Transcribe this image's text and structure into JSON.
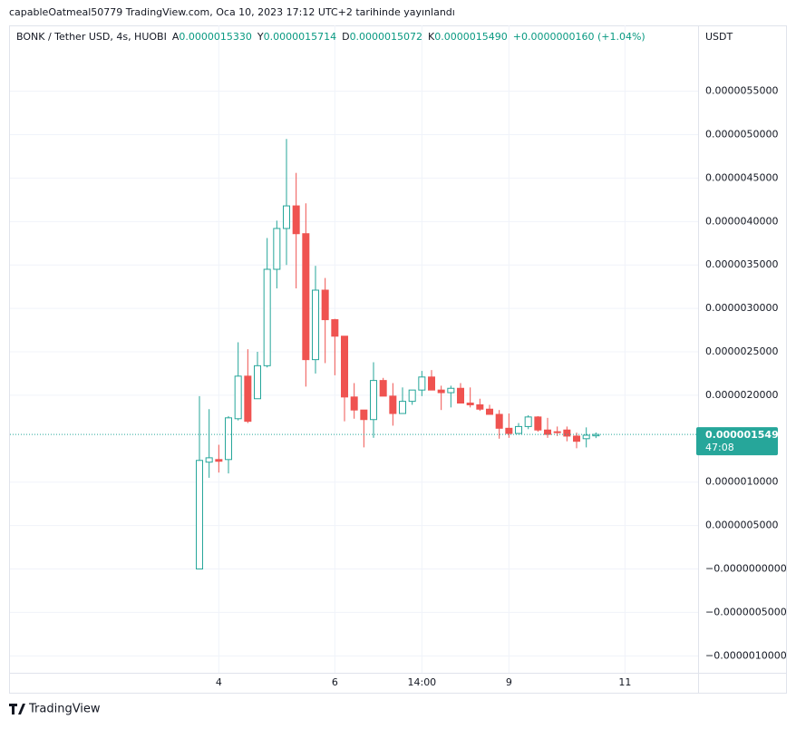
{
  "header": {
    "published": "capableOatmeal50779 TradingView.com, Oca 10, 2023 17:12 UTC+2 tarihinde yayınlandı"
  },
  "legend": {
    "symbol": "BONK / Tether USD, 4s, HUOBI",
    "items": [
      {
        "key": "A",
        "value": "0.0000015330"
      },
      {
        "key": "Y",
        "value": "0.0000015714"
      },
      {
        "key": "D",
        "value": "0.0000015072"
      },
      {
        "key": "K",
        "value": "0.0000015490"
      }
    ],
    "change": "+0.0000000160 (+1.04%)"
  },
  "footer": {
    "brand": "TradingView"
  },
  "chart_data": {
    "type": "candlestick",
    "currency": "USDT",
    "categories": [
      null,
      null,
      "4",
      null,
      null,
      null,
      null,
      null,
      null,
      null,
      null,
      null,
      null,
      null,
      "6",
      null,
      null,
      null,
      null,
      null,
      null,
      null,
      null,
      "14:00",
      null,
      null,
      null,
      null,
      null,
      null,
      null,
      null,
      "9",
      null,
      null,
      null,
      null,
      null,
      null,
      null,
      null,
      null,
      null,
      null,
      "11"
    ],
    "open": [
      0.0,
      1.23e-06,
      1.26e-06,
      1.26e-06,
      1.73e-06,
      2.22e-06,
      1.96e-06,
      2.34e-06,
      3.45e-06,
      3.92e-06,
      4.18e-06,
      3.86e-06,
      2.41e-06,
      3.21e-06,
      2.87e-06,
      2.68e-06,
      1.98e-06,
      1.83e-06,
      1.72e-06,
      2.17e-06,
      1.99e-06,
      1.79e-06,
      1.93e-06,
      2.06e-06,
      2.21e-06,
      2.06e-06,
      2.03e-06,
      2.08e-06,
      1.91e-06,
      1.89e-06,
      1.84e-06,
      1.78e-06,
      1.62e-06,
      1.56e-06,
      1.64e-06,
      1.75e-06,
      1.6e-06,
      1.58e-06,
      1.6e-06,
      1.53e-06,
      1.5e-06,
      1.533e-06,
      null,
      null,
      null
    ],
    "high": [
      1.99e-06,
      1.84e-06,
      1.43e-06,
      1.76e-06,
      2.61e-06,
      2.53e-06,
      2.5e-06,
      3.81e-06,
      4.01e-06,
      4.95e-06,
      4.56e-06,
      4.21e-06,
      3.49e-06,
      3.35e-06,
      2.88e-06,
      2.68e-06,
      2.14e-06,
      1.83e-06,
      2.38e-06,
      2.2e-06,
      2.14e-06,
      2.09e-06,
      2.06e-06,
      2.28e-06,
      2.29e-06,
      2.11e-06,
      2.11e-06,
      2.14e-06,
      2.09e-06,
      1.96e-06,
      1.89e-06,
      1.83e-06,
      1.79e-06,
      1.68e-06,
      1.77e-06,
      1.76e-06,
      1.74e-06,
      1.64e-06,
      1.64e-06,
      1.57e-06,
      1.63e-06,
      1.5714e-06,
      null,
      null,
      null
    ],
    "low": [
      0.0,
      1.05e-06,
      1.11e-06,
      1.1e-06,
      1.71e-06,
      1.68e-06,
      1.96e-06,
      2.32e-06,
      3.23e-06,
      3.5e-06,
      3.23e-06,
      2.1e-06,
      2.25e-06,
      2.37e-06,
      2.23e-06,
      1.7e-06,
      1.73e-06,
      1.4e-06,
      1.51e-06,
      1.99e-06,
      1.65e-06,
      1.79e-06,
      1.89e-06,
      1.99e-06,
      2.06e-06,
      1.83e-06,
      1.86e-06,
      1.91e-06,
      1.86e-06,
      1.82e-06,
      1.78e-06,
      1.5e-06,
      1.51e-06,
      1.56e-06,
      1.61e-06,
      1.58e-06,
      1.51e-06,
      1.53e-06,
      1.47e-06,
      1.39e-06,
      1.4e-06,
      1.5072e-06,
      null,
      null,
      null
    ],
    "close": [
      1.25e-06,
      1.28e-06,
      1.24e-06,
      1.74e-06,
      2.22e-06,
      1.7e-06,
      2.34e-06,
      3.45e-06,
      3.92e-06,
      4.18e-06,
      3.86e-06,
      2.41e-06,
      3.21e-06,
      2.87e-06,
      2.68e-06,
      1.98e-06,
      1.83e-06,
      1.72e-06,
      2.17e-06,
      1.99e-06,
      1.79e-06,
      1.93e-06,
      2.06e-06,
      2.21e-06,
      2.06e-06,
      2.03e-06,
      2.08e-06,
      1.91e-06,
      1.89e-06,
      1.84e-06,
      1.78e-06,
      1.62e-06,
      1.56e-06,
      1.64e-06,
      1.75e-06,
      1.6e-06,
      1.55e-06,
      1.57e-06,
      1.53e-06,
      1.47e-06,
      1.54e-06,
      1.549e-06,
      null,
      null,
      null
    ],
    "up_color": "#26a69a",
    "down_color": "#ef5350",
    "ylim": [
      -1.195e-06,
      6.258e-06
    ],
    "yticks": [
      {
        "value": -1e-06,
        "label": "−0.0000010000"
      },
      {
        "value": -5e-07,
        "label": "−0.0000005000"
      },
      {
        "value": 0,
        "label": "−0.0000000000"
      },
      {
        "value": 5e-07,
        "label": "0.0000005000"
      },
      {
        "value": 1e-06,
        "label": "0.0000010000"
      },
      {
        "value": 2e-06,
        "label": "0.0000020000"
      },
      {
        "value": 2.5e-06,
        "label": "0.0000025000"
      },
      {
        "value": 3e-06,
        "label": "0.0000030000"
      },
      {
        "value": 3.5e-06,
        "label": "0.0000035000"
      },
      {
        "value": 4e-06,
        "label": "0.0000040000"
      },
      {
        "value": 4.5e-06,
        "label": "0.0000045000"
      },
      {
        "value": 5e-06,
        "label": "0.0000050000"
      },
      {
        "value": 5.5e-06,
        "label": "0.0000055000"
      }
    ],
    "last_price": {
      "value": 1.549e-06,
      "label": "0.0000015490",
      "countdown": "47:08"
    },
    "grid": true
  }
}
